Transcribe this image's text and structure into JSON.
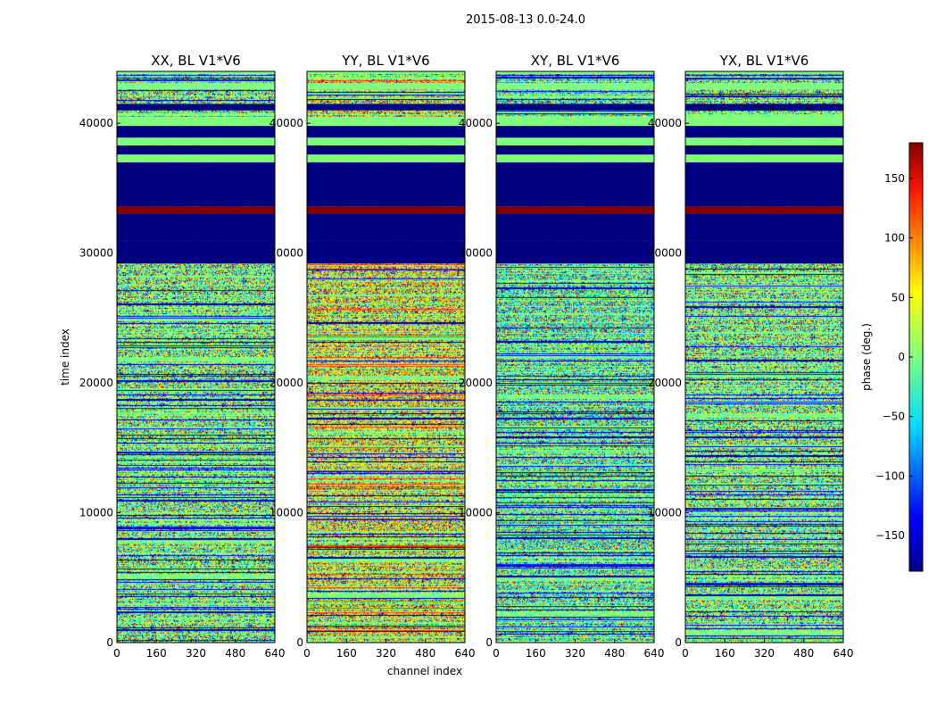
{
  "chart_data": {
    "type": "heatmap",
    "suptitle": "2015-08-13 0.0-24.0",
    "xlabel": "channel index",
    "ylabel": "time index",
    "colorbar_label": "phase (deg.)",
    "colormap": "jet",
    "value_range": [
      -180,
      180
    ],
    "xlim": [
      0,
      640
    ],
    "ylim": [
      0,
      44000
    ],
    "x_ticks": [
      0,
      160,
      320,
      480,
      640
    ],
    "y_ticks": [
      0,
      10000,
      20000,
      30000,
      40000
    ],
    "colorbar_ticks": [
      -150,
      -100,
      -50,
      0,
      50,
      100,
      150
    ],
    "panels": [
      {
        "title": "XX, BL V1*V6",
        "id": "xx"
      },
      {
        "title": "YY, BL V1*V6",
        "id": "yy"
      },
      {
        "title": "XY, BL V1*V6",
        "id": "xy"
      },
      {
        "title": "YX, BL V1*V6",
        "id": "yx"
      }
    ],
    "constant_bands": [
      {
        "y": [
          29200,
          31000
        ],
        "phase": -180
      },
      {
        "y": [
          31000,
          33000
        ],
        "phase": -180
      },
      {
        "y": [
          33000,
          33600
        ],
        "phase": 180
      },
      {
        "y": [
          33600,
          37000
        ],
        "phase": -180
      },
      {
        "y": [
          37000,
          37600
        ],
        "phase": 0
      },
      {
        "y": [
          37600,
          38300
        ],
        "phase": -180
      },
      {
        "y": [
          38300,
          38900
        ],
        "phase": 0
      },
      {
        "y": [
          38900,
          39800
        ],
        "phase": -180
      },
      {
        "y": [
          39800,
          40500
        ],
        "phase": 0
      },
      {
        "y": [
          41000,
          41500
        ],
        "phase": -180
      },
      {
        "y": [
          42600,
          43100
        ],
        "phase": 0
      },
      {
        "y": [
          43800,
          44000
        ],
        "phase": 0
      }
    ]
  }
}
